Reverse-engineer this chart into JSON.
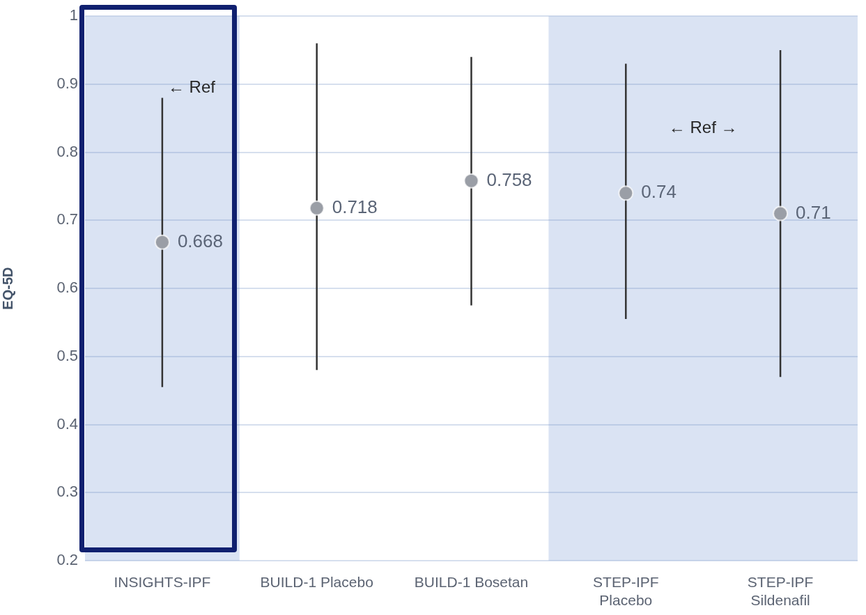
{
  "chart_data": {
    "type": "scatter",
    "ylabel": "EQ-5D",
    "categories": [
      "INSIGHTS-IPF",
      "BUILD-1 Placebo",
      "BUILD-1 Bosetan",
      "STEP-IPF Placebo",
      "STEP-IPF Sildenafil"
    ],
    "values": [
      0.668,
      0.718,
      0.758,
      0.74,
      0.71
    ],
    "errors": [
      [
        0.455,
        0.88
      ],
      [
        0.48,
        0.96
      ],
      [
        0.575,
        0.94
      ],
      [
        0.555,
        0.93
      ],
      [
        0.47,
        0.95
      ]
    ],
    "color": "#9a9ea6",
    "marker": "circle",
    "data_labels": true,
    "ylim": [
      0.2,
      1
    ],
    "yticks": [
      0.2,
      0.3,
      0.4,
      0.5,
      0.6,
      0.7,
      0.8,
      0.9,
      1
    ],
    "grid": "y",
    "bands": [
      {
        "axis": "x",
        "from": "INSIGHTS-IPF",
        "to": "INSIGHTS-IPF",
        "label": "← Ref",
        "color": "#dae3f3"
      },
      {
        "axis": "x",
        "from": "STEP-IPF Placebo",
        "to": "STEP-IPF Sildenafil",
        "label": "← Ref →",
        "color": "#dae3f3"
      }
    ]
  }
}
